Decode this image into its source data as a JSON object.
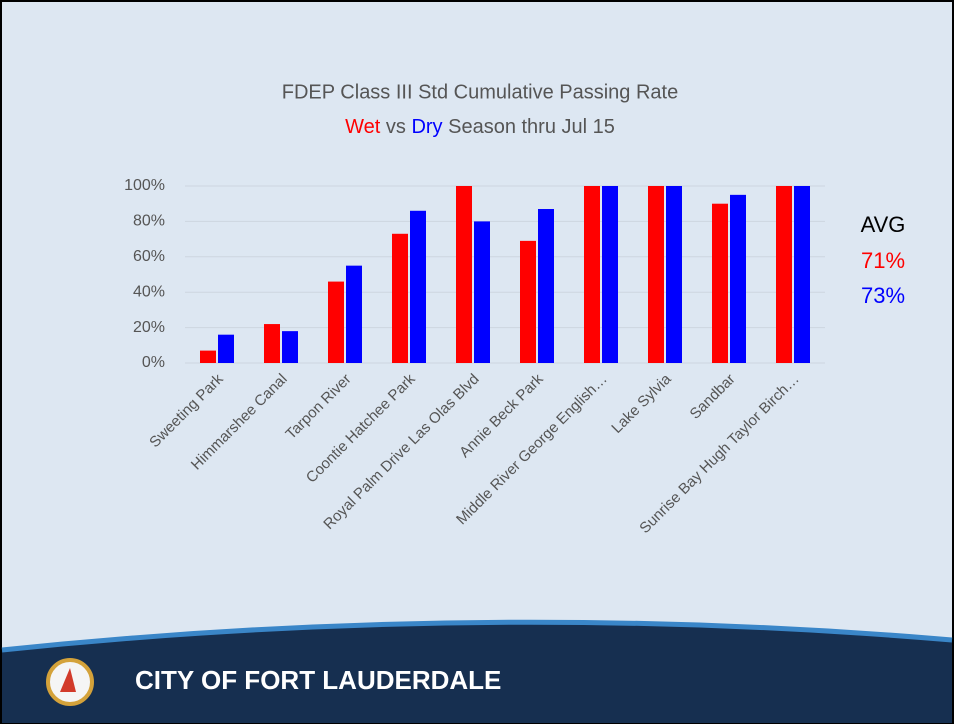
{
  "chart_data": {
    "type": "bar",
    "title": "FDEP Class III Std Cumulative Passing Rate",
    "subtitle_middle": "vs",
    "subtitle_end": "Season thru Jul 15",
    "categories": [
      "Sweeting Park",
      "Himmarshee Canal",
      "Tarpon River",
      "Coontie Hatchee Park",
      "Royal Palm Drive Las Olas Blvd",
      "Annie Beck Park",
      "Middle River George English…",
      "Lake Sylvia",
      "Sandbar",
      "Sunrise Bay Hugh Taylor Birch…"
    ],
    "series": [
      {
        "name": "Wet",
        "color": "#ff0000",
        "values": [
          7,
          22,
          46,
          73,
          100,
          69,
          100,
          100,
          90,
          100
        ],
        "average": {
          "value": 71,
          "label": "71%"
        }
      },
      {
        "name": "Dry",
        "color": "#0000ff",
        "values": [
          16,
          18,
          55,
          86,
          80,
          87,
          100,
          100,
          95,
          100
        ],
        "average": {
          "value": 73,
          "label": "73%"
        }
      }
    ],
    "average_label": "AVG",
    "ylim": [
      0,
      100
    ],
    "yticks": [
      {
        "value": 0,
        "label": "0%"
      },
      {
        "value": 20,
        "label": "20%"
      },
      {
        "value": 40,
        "label": "40%"
      },
      {
        "value": 60,
        "label": "60%"
      },
      {
        "value": 80,
        "label": "80%"
      },
      {
        "value": 100,
        "label": "100%"
      }
    ],
    "grid": true
  },
  "footer": {
    "text": "CITY OF FORT LAUDERDALE"
  }
}
